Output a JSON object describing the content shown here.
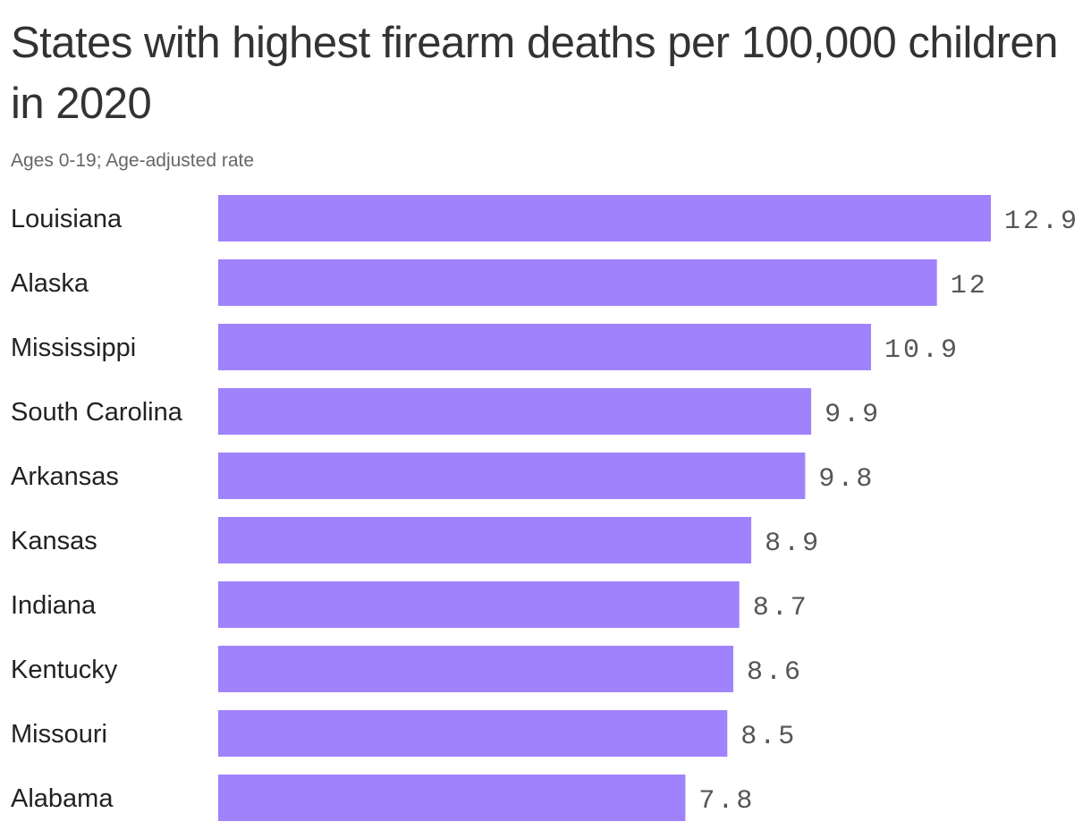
{
  "title": "States with highest firearm deaths per 100,000 children in 2020",
  "subtitle": "Ages 0-19; Age-adjusted rate",
  "chart_data": {
    "type": "bar",
    "orientation": "horizontal",
    "title": "States with highest firearm deaths per 100,000 children in 2020",
    "subtitle": "Ages 0-19; Age-adjusted rate",
    "categories": [
      "Louisiana",
      "Alaska",
      "Mississippi",
      "South Carolina",
      "Arkansas",
      "Kansas",
      "Indiana",
      "Kentucky",
      "Missouri",
      "Alabama"
    ],
    "values": [
      12.9,
      12,
      10.9,
      9.9,
      9.8,
      8.9,
      8.7,
      8.6,
      8.5,
      7.8
    ],
    "value_labels": [
      "12.9",
      "12",
      "10.9",
      "9.9",
      "9.8",
      "8.9",
      "8.7",
      "8.6",
      "8.5",
      "7.8"
    ],
    "xlim": [
      0,
      12.9
    ],
    "grid": false,
    "legend": "none",
    "bar_color": "#a182fd"
  }
}
